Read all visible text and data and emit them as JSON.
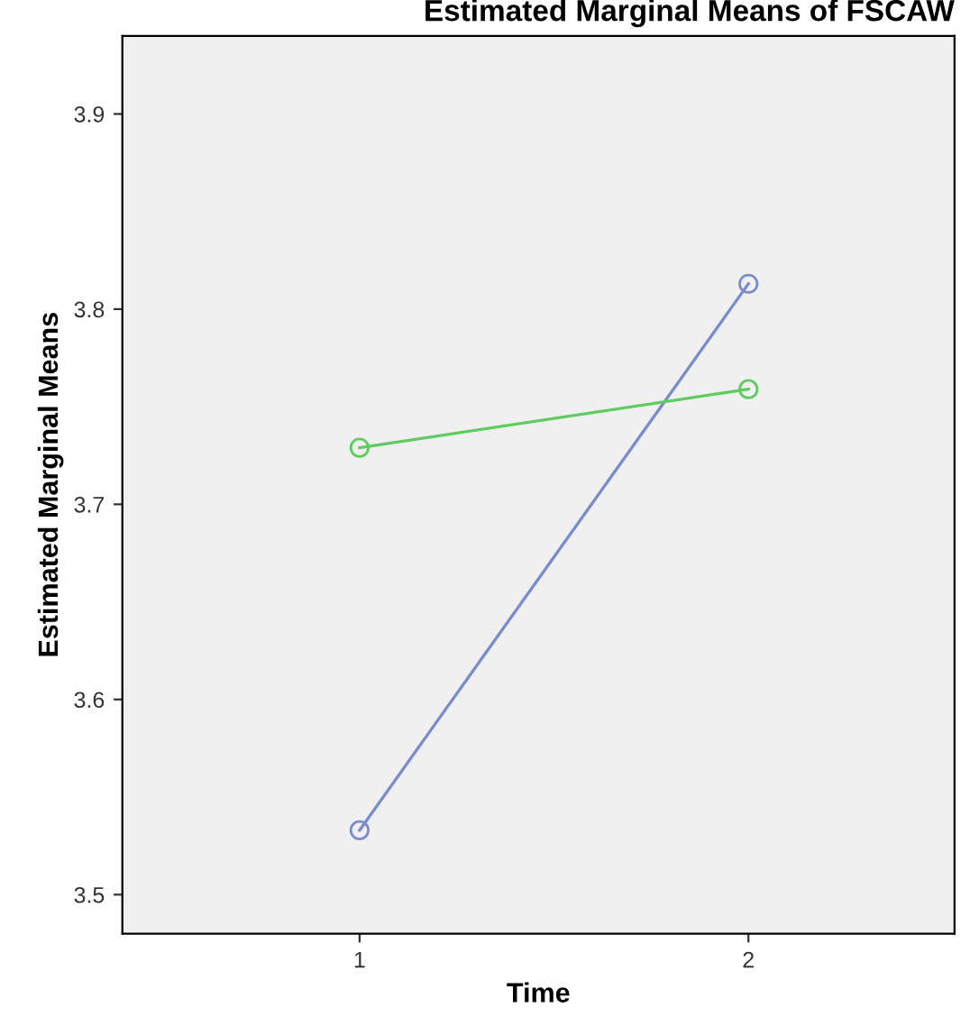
{
  "chart_data": {
    "type": "line",
    "title": "Estimated Marginal Means of FSCAW",
    "xlabel": "Time",
    "ylabel": "Estimated Marginal Means",
    "x": [
      1,
      2
    ],
    "series": [
      {
        "color": "#7b8ccc",
        "values": [
          3.533,
          3.813
        ]
      },
      {
        "color": "#5fcc5f",
        "values": [
          3.729,
          3.759
        ]
      }
    ],
    "xlim": [
      0.39,
      2.53
    ],
    "xticks": [
      1,
      2
    ],
    "ylim": [
      3.48,
      3.94
    ],
    "yticks": [
      3.5,
      3.6,
      3.7,
      3.8,
      3.9
    ],
    "marker": "circle",
    "grid": false,
    "legend": false
  }
}
